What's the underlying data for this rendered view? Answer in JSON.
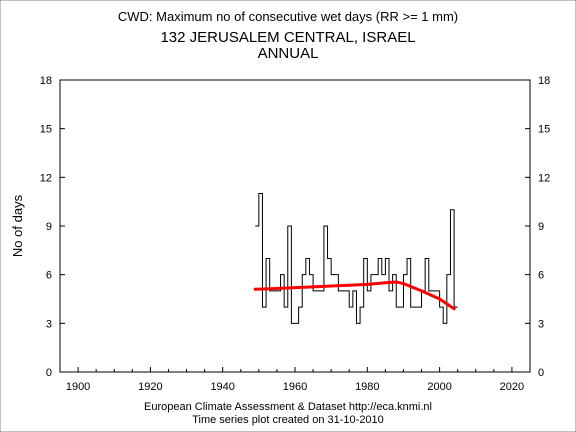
{
  "header": {
    "line1": "CWD: Maximum no of consecutive wet days (RR >= 1 mm)",
    "line2": "132 JERUSALEM CENTRAL, ISRAEL",
    "line3": "ANNUAL"
  },
  "footer": {
    "line1": "European Climate Assessment & Dataset  http://eca.knmi.nl",
    "line2": "Time series plot created on 31-10-2010"
  },
  "chart_data": {
    "type": "line",
    "title": "CWD: Maximum no of consecutive wet days (RR >= 1 mm)",
    "ylabel": "No of days",
    "xlabel": "",
    "xlim": [
      1895,
      2025
    ],
    "ylim": [
      0,
      18
    ],
    "x_ticks": [
      1900,
      1920,
      1940,
      1960,
      1980,
      2000,
      2020
    ],
    "y_ticks": [
      0,
      3,
      6,
      9,
      12,
      15,
      18
    ],
    "grid": false,
    "series": [
      {
        "style": "step",
        "color": "#000000",
        "x": [
          1949,
          1950,
          1951,
          1952,
          1953,
          1954,
          1955,
          1956,
          1957,
          1958,
          1959,
          1960,
          1961,
          1962,
          1963,
          1964,
          1965,
          1966,
          1967,
          1968,
          1969,
          1970,
          1971,
          1972,
          1973,
          1974,
          1975,
          1976,
          1977,
          1978,
          1979,
          1980,
          1981,
          1982,
          1983,
          1984,
          1985,
          1986,
          1987,
          1988,
          1989,
          1990,
          1991,
          1992,
          1993,
          1994,
          1995,
          1996,
          1997,
          1998,
          1999,
          2000,
          2001,
          2002,
          2003,
          2004
        ],
        "values": [
          9,
          11,
          4,
          7,
          5,
          5,
          5,
          6,
          4,
          9,
          3,
          3,
          4,
          6,
          7,
          6,
          5,
          5,
          5,
          9,
          7,
          6,
          6,
          5,
          5,
          5,
          4,
          5,
          3,
          4,
          7,
          5,
          6,
          6,
          7,
          6,
          7,
          5,
          6,
          4,
          4,
          6,
          7,
          4,
          4,
          4,
          5,
          7,
          5,
          5,
          5,
          4,
          3,
          6,
          10,
          4
        ]
      },
      {
        "style": "smooth",
        "color": "#ff0000",
        "x": [
          1949,
          1955,
          1960,
          1965,
          1970,
          1975,
          1980,
          1985,
          1988,
          1990,
          1995,
          2000,
          2004
        ],
        "values": [
          5.1,
          5.15,
          5.2,
          5.25,
          5.3,
          5.35,
          5.4,
          5.5,
          5.55,
          5.45,
          5.0,
          4.5,
          3.9
        ]
      }
    ]
  }
}
